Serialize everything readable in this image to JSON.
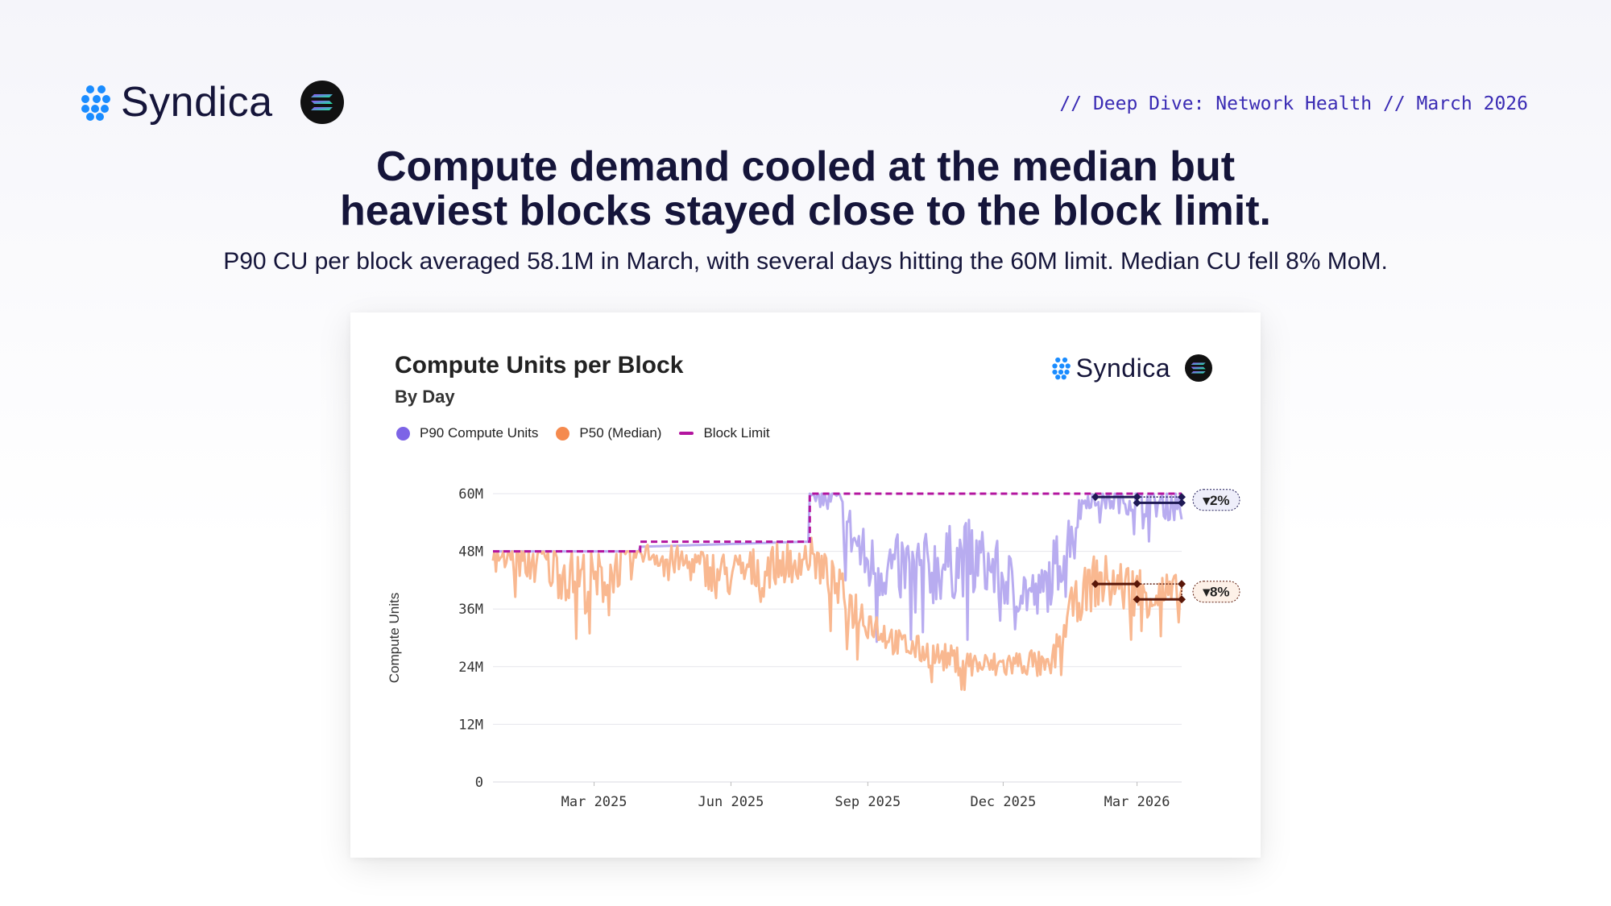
{
  "brand": {
    "name": "Syndica",
    "mark": "syndica-logo-icon",
    "partner": "solana-logo-icon"
  },
  "tagline": "// Deep Dive: Network Health // March 2026",
  "headline": {
    "line1": "Compute demand cooled at the median but",
    "line2": "heaviest blocks stayed close to the block limit."
  },
  "subtitle": "P90 CU per block averaged 58.1M in March, with several days hitting the 60M limit. Median CU fell 8% MoM.",
  "card": {
    "title": "Compute Units per Block",
    "subtitle": "By Day",
    "brand_name": "Syndica"
  },
  "colors": {
    "ink": "#15153a",
    "accent": "#3a2bb4",
    "p90": "#b8acf0",
    "p90_dot": "#7d64e6",
    "p50": "#f9b890",
    "p50_dot": "#f58a4e",
    "limit": "#b3159f",
    "p90_marker": "#1f1a55",
    "p50_marker": "#5a1708"
  },
  "chart_data": {
    "type": "line",
    "title": "Compute Units per Block",
    "subtitle": "By Day",
    "ylabel": "Compute Units",
    "xlabel": "",
    "ylim": [
      0,
      60000000
    ],
    "yticks": [
      {
        "value": 0,
        "label": "0"
      },
      {
        "value": 12000000,
        "label": "12M"
      },
      {
        "value": 24000000,
        "label": "24M"
      },
      {
        "value": 36000000,
        "label": "36M"
      },
      {
        "value": 48000000,
        "label": "48M"
      },
      {
        "value": 60000000,
        "label": "60M"
      }
    ],
    "xrange": [
      "2024-12-23",
      "2026-03-31"
    ],
    "xticks": [
      {
        "date": "2025-03-01",
        "label": "Mar 2025"
      },
      {
        "date": "2025-06-01",
        "label": "Jun 2025"
      },
      {
        "date": "2025-09-01",
        "label": "Sep 2025"
      },
      {
        "date": "2025-12-01",
        "label": "Dec 2025"
      },
      {
        "date": "2026-03-01",
        "label": "Mar 2026"
      }
    ],
    "legend": [
      "P90 Compute Units",
      "P50 (Median)",
      "Block Limit"
    ],
    "series": [
      {
        "name": "Block Limit",
        "type": "step",
        "points": [
          {
            "date": "2024-12-23",
            "value": 48000000
          },
          {
            "date": "2025-04-01",
            "value": 50000000
          },
          {
            "date": "2025-07-24",
            "value": 60000000
          },
          {
            "date": "2026-03-31",
            "value": 60000000
          }
        ]
      },
      {
        "name": "P90 Compute Units",
        "description": "daily P90 CU per block; at block limit through ~Aug 2025, then 32M–60M, recovering to ~58M by Mar 2026",
        "anchors": [
          {
            "date": "2024-12-23",
            "value": 48000000,
            "noise": 0
          },
          {
            "date": "2025-07-20",
            "value": 50000000,
            "noise": 0
          },
          {
            "date": "2025-07-24",
            "value": 60000000,
            "noise": 0
          },
          {
            "date": "2025-08-10",
            "value": 58000000,
            "noise": 5000000
          },
          {
            "date": "2025-09-01",
            "value": 45000000,
            "noise": 7000000
          },
          {
            "date": "2025-10-10",
            "value": 44000000,
            "noise": 8000000
          },
          {
            "date": "2025-11-10",
            "value": 47000000,
            "noise": 8000000
          },
          {
            "date": "2025-12-05",
            "value": 42000000,
            "noise": 6000000
          },
          {
            "date": "2025-12-25",
            "value": 38000000,
            "noise": 6000000
          },
          {
            "date": "2026-01-10",
            "value": 48000000,
            "noise": 7000000
          },
          {
            "date": "2026-01-25",
            "value": 59000000,
            "noise": 2000000
          },
          {
            "date": "2026-03-31",
            "value": 58000000,
            "noise": 4000000
          }
        ]
      },
      {
        "name": "P50 (Median)",
        "description": "daily median CU per block; ~48M early 2025, ~20–30M in Q4 2025, rising to ~40M by Mar 2026",
        "anchors": [
          {
            "date": "2024-12-23",
            "value": 48000000,
            "noise": 3000000
          },
          {
            "date": "2025-02-01",
            "value": 45000000,
            "noise": 6000000
          },
          {
            "date": "2025-03-01",
            "value": 41000000,
            "noise": 7000000
          },
          {
            "date": "2025-04-01",
            "value": 48000000,
            "noise": 2000000
          },
          {
            "date": "2025-06-01",
            "value": 43000000,
            "noise": 5000000
          },
          {
            "date": "2025-07-25",
            "value": 47000000,
            "noise": 4000000
          },
          {
            "date": "2025-08-20",
            "value": 37000000,
            "noise": 5000000
          },
          {
            "date": "2025-09-20",
            "value": 29000000,
            "noise": 3000000
          },
          {
            "date": "2025-10-20",
            "value": 26000000,
            "noise": 3000000
          },
          {
            "date": "2025-11-20",
            "value": 24000000,
            "noise": 3000000
          },
          {
            "date": "2025-12-20",
            "value": 25000000,
            "noise": 3000000
          },
          {
            "date": "2026-01-01",
            "value": 23000000,
            "noise": 3000000
          },
          {
            "date": "2026-01-15",
            "value": 36000000,
            "noise": 4000000
          },
          {
            "date": "2026-02-01",
            "value": 42000000,
            "noise": 6000000
          },
          {
            "date": "2026-03-31",
            "value": 38000000,
            "noise": 5000000
          }
        ]
      }
    ],
    "annotations": [
      {
        "series": "P90 Compute Units",
        "label": "▾2%",
        "prev_period": {
          "start": "2026-02-01",
          "end": "2026-03-01",
          "value": 59300000
        },
        "curr_period": {
          "start": "2026-03-01",
          "end": "2026-03-31",
          "value": 58100000
        }
      },
      {
        "series": "P50 (Median)",
        "label": "▾8%",
        "prev_period": {
          "start": "2026-02-01",
          "end": "2026-03-01",
          "value": 41200000
        },
        "curr_period": {
          "start": "2026-03-01",
          "end": "2026-03-31",
          "value": 38000000
        }
      }
    ]
  }
}
